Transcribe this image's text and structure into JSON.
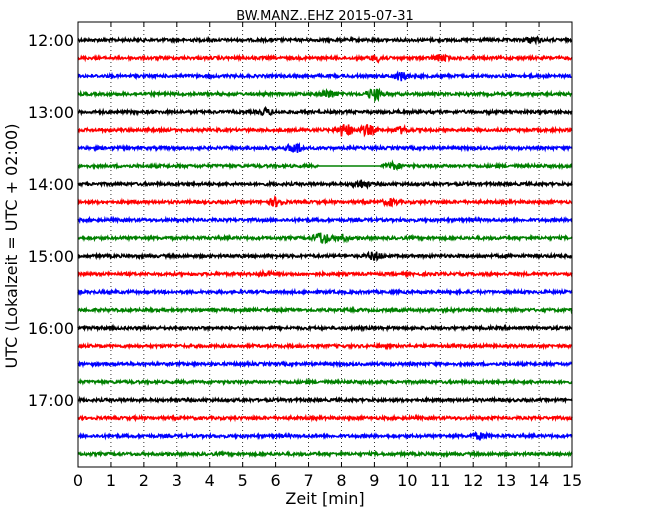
{
  "chart_data": {
    "type": "line",
    "title": "BW.MANZ..EHZ 2015-07-31",
    "xlabel": "Zeit  [min]",
    "ylabel": "UTC (Lokalzeit = UTC + 02:00)",
    "xlim": [
      0,
      15
    ],
    "x_ticks": [
      "0",
      "1",
      "2",
      "3",
      "4",
      "5",
      "6",
      "7",
      "8",
      "9",
      "10",
      "11",
      "12",
      "13",
      "14",
      "15"
    ],
    "y_tick_labels": [
      "12:00",
      "13:00",
      "14:00",
      "15:00",
      "16:00",
      "17:00"
    ],
    "grid": "vertical dotted",
    "colors": [
      "#000000",
      "#ff0000",
      "#0000ff",
      "#008000"
    ],
    "traces": [
      {
        "start": "12:00",
        "color": "#000000",
        "events": [
          {
            "minute": 13.8,
            "amplitude": 3
          }
        ]
      },
      {
        "start": "12:15",
        "color": "#ff0000",
        "events": [
          {
            "minute": 9.1,
            "amplitude": 3
          },
          {
            "minute": 11.0,
            "amplitude": 3
          }
        ]
      },
      {
        "start": "12:30",
        "color": "#0000ff",
        "events": [
          {
            "minute": 9.8,
            "amplitude": 4
          }
        ]
      },
      {
        "start": "12:45",
        "color": "#008000",
        "events": [
          {
            "minute": 7.6,
            "amplitude": 4
          },
          {
            "minute": 9.0,
            "amplitude": 6
          }
        ]
      },
      {
        "start": "13:00",
        "color": "#000000",
        "events": [
          {
            "minute": 5.7,
            "amplitude": 3
          }
        ]
      },
      {
        "start": "13:15",
        "color": "#ff0000",
        "events": [
          {
            "minute": 8.1,
            "amplitude": 7
          },
          {
            "minute": 8.8,
            "amplitude": 5
          },
          {
            "minute": 9.8,
            "amplitude": 3
          }
        ]
      },
      {
        "start": "13:30",
        "color": "#0000ff",
        "events": [
          {
            "minute": 6.6,
            "amplitude": 5
          }
        ]
      },
      {
        "start": "13:45",
        "color": "#008000",
        "events": [
          {
            "minute": 9.6,
            "amplitude": 3
          }
        ],
        "gap": [
          7.3,
          9.2
        ]
      },
      {
        "start": "14:00",
        "color": "#000000",
        "events": [
          {
            "minute": 8.6,
            "amplitude": 4
          }
        ]
      },
      {
        "start": "14:15",
        "color": "#ff0000",
        "events": [
          {
            "minute": 6.0,
            "amplitude": 4
          },
          {
            "minute": 9.5,
            "amplitude": 3
          }
        ]
      },
      {
        "start": "14:30",
        "color": "#0000ff",
        "events": []
      },
      {
        "start": "14:45",
        "color": "#008000",
        "events": [
          {
            "minute": 7.4,
            "amplitude": 6
          },
          {
            "minute": 8.0,
            "amplitude": 3
          }
        ]
      },
      {
        "start": "15:00",
        "color": "#000000",
        "events": [
          {
            "minute": 9.0,
            "amplitude": 4
          }
        ]
      },
      {
        "start": "15:15",
        "color": "#ff0000",
        "events": [
          {
            "minute": 5.7,
            "amplitude": 2
          }
        ]
      },
      {
        "start": "15:30",
        "color": "#0000ff",
        "events": []
      },
      {
        "start": "15:45",
        "color": "#008000",
        "events": []
      },
      {
        "start": "16:00",
        "color": "#000000",
        "events": []
      },
      {
        "start": "16:15",
        "color": "#ff0000",
        "events": []
      },
      {
        "start": "16:30",
        "color": "#0000ff",
        "events": []
      },
      {
        "start": "16:45",
        "color": "#008000",
        "events": []
      },
      {
        "start": "17:00",
        "color": "#000000",
        "events": []
      },
      {
        "start": "17:15",
        "color": "#ff0000",
        "events": []
      },
      {
        "start": "17:30",
        "color": "#0000ff",
        "events": [
          {
            "minute": 12.2,
            "amplitude": 3
          }
        ]
      },
      {
        "start": "17:45",
        "color": "#008000",
        "events": []
      }
    ]
  }
}
